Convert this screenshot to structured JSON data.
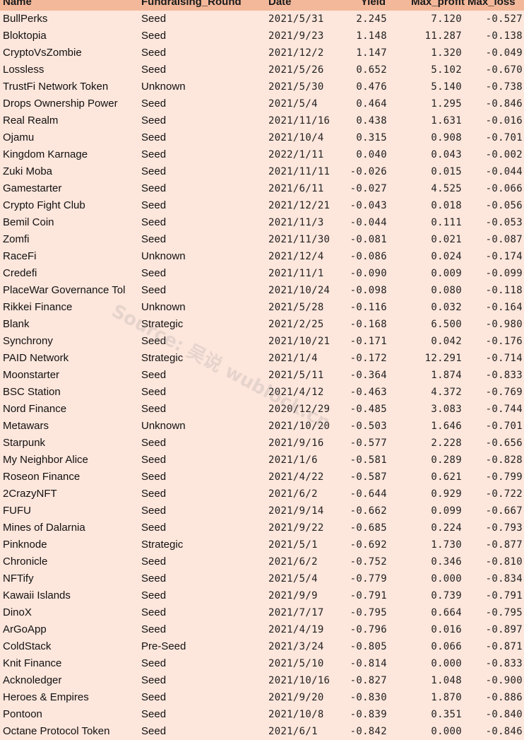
{
  "headers": {
    "name": "Name",
    "round": "Fundraising_Round",
    "date": "Date",
    "yield": "Yield",
    "max_profit": "Max_profit",
    "max_loss": "Max_loss"
  },
  "rows": [
    {
      "name": "BullPerks",
      "round": "Seed",
      "date": "2021/5/31",
      "yield": "2.245",
      "max_profit": "7.120",
      "max_loss": "-0.527"
    },
    {
      "name": "Bloktopia",
      "round": "Seed",
      "date": "2021/9/23",
      "yield": "1.148",
      "max_profit": "11.287",
      "max_loss": "-0.138"
    },
    {
      "name": "CryptoVsZombie",
      "round": "Seed",
      "date": "2021/12/2",
      "yield": "1.147",
      "max_profit": "1.320",
      "max_loss": "-0.049"
    },
    {
      "name": "Lossless",
      "round": "Seed",
      "date": "2021/5/26",
      "yield": "0.652",
      "max_profit": "5.102",
      "max_loss": "-0.670"
    },
    {
      "name": "TrustFi Network Token",
      "round": "Unknown",
      "date": "2021/5/30",
      "yield": "0.476",
      "max_profit": "5.140",
      "max_loss": "-0.738"
    },
    {
      "name": "Drops Ownership Power",
      "round": "Seed",
      "date": "2021/5/4",
      "yield": "0.464",
      "max_profit": "1.295",
      "max_loss": "-0.846"
    },
    {
      "name": "Real Realm",
      "round": "Seed",
      "date": "2021/11/16",
      "yield": "0.438",
      "max_profit": "1.631",
      "max_loss": "-0.016"
    },
    {
      "name": "Ojamu",
      "round": "Seed",
      "date": "2021/10/4",
      "yield": "0.315",
      "max_profit": "0.908",
      "max_loss": "-0.701"
    },
    {
      "name": "Kingdom Karnage",
      "round": "Seed",
      "date": "2022/1/11",
      "yield": "0.040",
      "max_profit": "0.043",
      "max_loss": "-0.002"
    },
    {
      "name": "Zuki Moba",
      "round": "Seed",
      "date": "2021/11/11",
      "yield": "-0.026",
      "max_profit": "0.015",
      "max_loss": "-0.044"
    },
    {
      "name": "Gamestarter",
      "round": "Seed",
      "date": "2021/6/11",
      "yield": "-0.027",
      "max_profit": "4.525",
      "max_loss": "-0.066"
    },
    {
      "name": "Crypto Fight Club",
      "round": "Seed",
      "date": "2021/12/21",
      "yield": "-0.043",
      "max_profit": "0.018",
      "max_loss": "-0.056"
    },
    {
      "name": "Bemil Coin",
      "round": "Seed",
      "date": "2021/11/3",
      "yield": "-0.044",
      "max_profit": "0.111",
      "max_loss": "-0.053"
    },
    {
      "name": "Zomfi",
      "round": "Seed",
      "date": "2021/11/30",
      "yield": "-0.081",
      "max_profit": "0.021",
      "max_loss": "-0.087"
    },
    {
      "name": "RaceFi",
      "round": "Unknown",
      "date": "2021/12/4",
      "yield": "-0.086",
      "max_profit": "0.024",
      "max_loss": "-0.174"
    },
    {
      "name": "Credefi",
      "round": "Seed",
      "date": "2021/11/1",
      "yield": "-0.090",
      "max_profit": "0.009",
      "max_loss": "-0.099"
    },
    {
      "name": "PlaceWar Governance Tol",
      "round": "Seed",
      "date": "2021/10/24",
      "yield": "-0.098",
      "max_profit": "0.080",
      "max_loss": "-0.118"
    },
    {
      "name": "Rikkei Finance",
      "round": "Unknown",
      "date": "2021/5/28",
      "yield": "-0.116",
      "max_profit": "0.032",
      "max_loss": "-0.164"
    },
    {
      "name": "Blank",
      "round": "Strategic",
      "date": "2021/2/25",
      "yield": "-0.168",
      "max_profit": "6.500",
      "max_loss": "-0.980"
    },
    {
      "name": "Synchrony",
      "round": "Seed",
      "date": "2021/10/21",
      "yield": "-0.171",
      "max_profit": "0.042",
      "max_loss": "-0.176"
    },
    {
      "name": "PAID Network",
      "round": "Strategic",
      "date": "2021/1/4",
      "yield": "-0.172",
      "max_profit": "12.291",
      "max_loss": "-0.714"
    },
    {
      "name": "Moonstarter",
      "round": "Seed",
      "date": "2021/5/11",
      "yield": "-0.364",
      "max_profit": "1.874",
      "max_loss": "-0.833"
    },
    {
      "name": "BSC Station",
      "round": "Seed",
      "date": "2021/4/12",
      "yield": "-0.463",
      "max_profit": "4.372",
      "max_loss": "-0.769"
    },
    {
      "name": "Nord Finance",
      "round": "Seed",
      "date": "2020/12/29",
      "yield": "-0.485",
      "max_profit": "3.083",
      "max_loss": "-0.744"
    },
    {
      "name": "Metawars",
      "round": "Unknown",
      "date": "2021/10/20",
      "yield": "-0.503",
      "max_profit": "1.646",
      "max_loss": "-0.701"
    },
    {
      "name": "Starpunk",
      "round": "Seed",
      "date": "2021/9/16",
      "yield": "-0.577",
      "max_profit": "2.228",
      "max_loss": "-0.656"
    },
    {
      "name": "My Neighbor Alice",
      "round": "Seed",
      "date": "2021/1/6",
      "yield": "-0.581",
      "max_profit": "0.289",
      "max_loss": "-0.828"
    },
    {
      "name": "Roseon Finance",
      "round": "Seed",
      "date": "2021/4/22",
      "yield": "-0.587",
      "max_profit": "0.621",
      "max_loss": "-0.799"
    },
    {
      "name": "2CrazyNFT",
      "round": "Seed",
      "date": "2021/6/2",
      "yield": "-0.644",
      "max_profit": "0.929",
      "max_loss": "-0.722"
    },
    {
      "name": "FUFU",
      "round": "Seed",
      "date": "2021/9/14",
      "yield": "-0.662",
      "max_profit": "0.099",
      "max_loss": "-0.667"
    },
    {
      "name": "Mines of Dalarnia",
      "round": "Seed",
      "date": "2021/9/22",
      "yield": "-0.685",
      "max_profit": "0.224",
      "max_loss": "-0.793"
    },
    {
      "name": "Pinknode",
      "round": "Strategic",
      "date": "2021/5/1",
      "yield": "-0.692",
      "max_profit": "1.730",
      "max_loss": "-0.877"
    },
    {
      "name": "Chronicle",
      "round": "Seed",
      "date": "2021/6/2",
      "yield": "-0.752",
      "max_profit": "0.346",
      "max_loss": "-0.810"
    },
    {
      "name": "NFTify",
      "round": "Seed",
      "date": "2021/5/4",
      "yield": "-0.779",
      "max_profit": "0.000",
      "max_loss": "-0.834"
    },
    {
      "name": "Kawaii Islands",
      "round": "Seed",
      "date": "2021/9/9",
      "yield": "-0.791",
      "max_profit": "0.739",
      "max_loss": "-0.791"
    },
    {
      "name": "DinoX",
      "round": "Seed",
      "date": "2021/7/17",
      "yield": "-0.795",
      "max_profit": "0.664",
      "max_loss": "-0.795"
    },
    {
      "name": "ArGoApp",
      "round": "Seed",
      "date": "2021/4/19",
      "yield": "-0.796",
      "max_profit": "0.016",
      "max_loss": "-0.897"
    },
    {
      "name": "ColdStack",
      "round": "Pre-Seed",
      "date": "2021/3/24",
      "yield": "-0.805",
      "max_profit": "0.066",
      "max_loss": "-0.871"
    },
    {
      "name": "Knit Finance",
      "round": "Seed",
      "date": "2021/5/10",
      "yield": "-0.814",
      "max_profit": "0.000",
      "max_loss": "-0.833"
    },
    {
      "name": "Acknoledger",
      "round": "Seed",
      "date": "2021/10/16",
      "yield": "-0.827",
      "max_profit": "1.048",
      "max_loss": "-0.900"
    },
    {
      "name": "Heroes & Empires",
      "round": "Seed",
      "date": "2021/9/20",
      "yield": "-0.830",
      "max_profit": "1.870",
      "max_loss": "-0.886"
    },
    {
      "name": "Pontoon",
      "round": "Seed",
      "date": "2021/10/8",
      "yield": "-0.839",
      "max_profit": "0.351",
      "max_loss": "-0.840"
    },
    {
      "name": "Octane Protocol Token",
      "round": "Seed",
      "date": "2021/6/1",
      "yield": "-0.842",
      "max_profit": "0.000",
      "max_loss": "-0.846"
    }
  ],
  "watermark": "Source: 吴说 wublock.cn",
  "colors": {
    "background": "#fde6dc",
    "header": "#f3b89a"
  }
}
